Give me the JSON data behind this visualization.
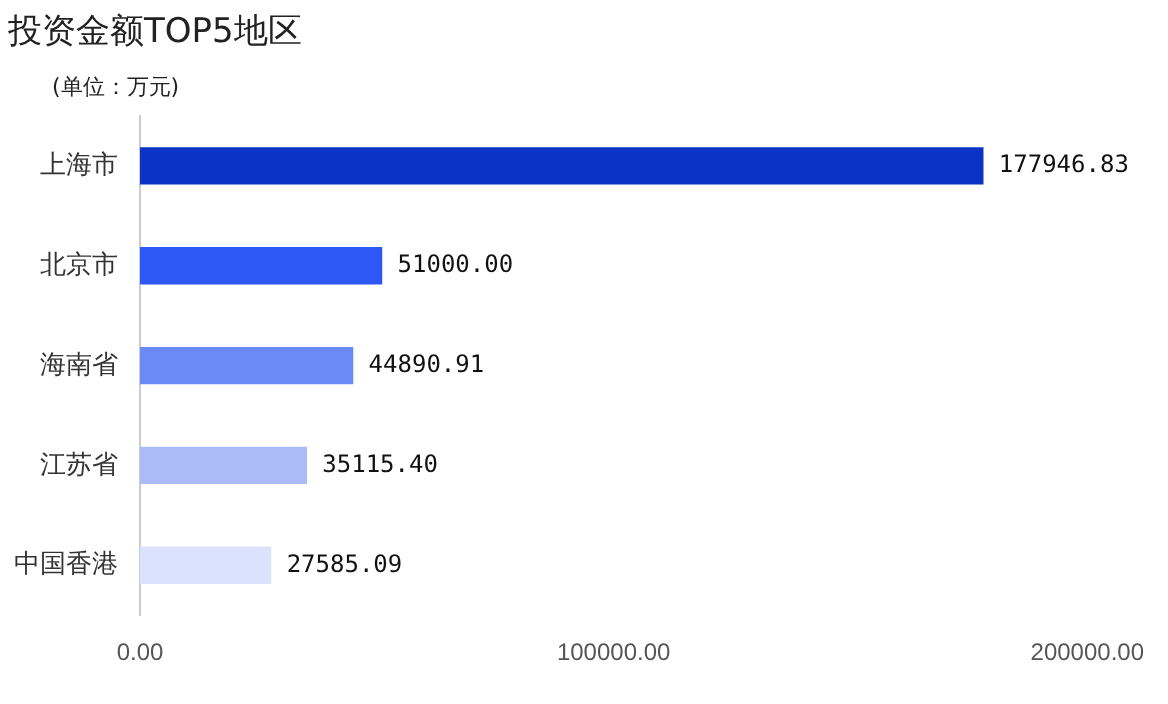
{
  "chart_data": {
    "type": "bar",
    "orientation": "horizontal",
    "title": "投资金额TOP5地区",
    "subtitle": "(单位：万元)",
    "categories": [
      "上海市",
      "北京市",
      "海南省",
      "江苏省",
      "中国香港"
    ],
    "values": [
      177946.83,
      51000.0,
      44890.91,
      35115.4,
      27585.09
    ],
    "colors": [
      "#0b33c4",
      "#2e58f5",
      "#6b8af6",
      "#aabbf7",
      "#dbe2fb"
    ],
    "value_labels": [
      "177946.83",
      "51000.00",
      "44890.91",
      "35115.40",
      "27585.09"
    ],
    "xlim": [
      0,
      200000
    ],
    "xticks": [
      {
        "value": 0,
        "label": "0.00"
      },
      {
        "value": 100000,
        "label": "100000.00"
      },
      {
        "value": 200000,
        "label": "200000.00"
      }
    ],
    "grid": false,
    "legend": false
  }
}
